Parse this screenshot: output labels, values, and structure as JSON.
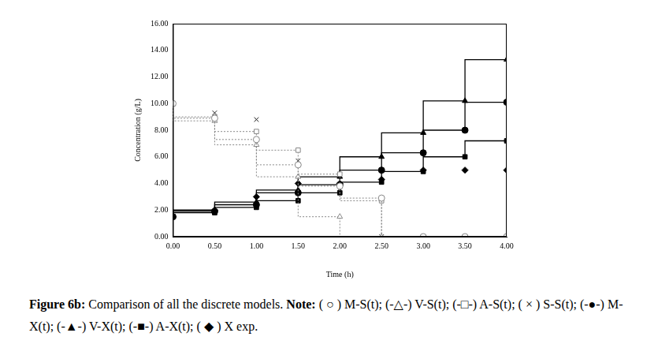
{
  "chart_data": {
    "type": "line",
    "x_label": "Time (h)",
    "y_label": "Concentration (g/L)",
    "x": [
      0,
      0.5,
      1,
      1.5,
      2,
      2.5,
      3,
      3.5,
      4
    ],
    "xlim": [
      0,
      4
    ],
    "xticks": [
      {
        "value": 0,
        "label": "0.00"
      },
      {
        "value": 0.5,
        "label": "0.50"
      },
      {
        "value": 1,
        "label": "1.00"
      },
      {
        "value": 1.5,
        "label": "1.50"
      },
      {
        "value": 2,
        "label": "2.00"
      },
      {
        "value": 2.5,
        "label": "2.50"
      },
      {
        "value": 3,
        "label": "3.00"
      },
      {
        "value": 3.5,
        "label": "3.50"
      },
      {
        "value": 4,
        "label": "4.00"
      }
    ],
    "ylim": [
      0,
      16
    ],
    "yticks": [
      {
        "value": 0,
        "label": "0.00"
      },
      {
        "value": 2,
        "label": "2.00"
      },
      {
        "value": 4,
        "label": "4.00"
      },
      {
        "value": 6,
        "label": "6.00"
      },
      {
        "value": 8,
        "label": "8.00"
      },
      {
        "value": 10,
        "label": "10.00"
      },
      {
        "value": 12,
        "label": "12.00"
      },
      {
        "value": 14,
        "label": "14.00"
      },
      {
        "value": 16,
        "label": "16.00"
      }
    ],
    "grid": false,
    "series": [
      {
        "name": "M-S(t)",
        "color": "#888888",
        "marker": "circle-open",
        "line_style": "dotted",
        "values": [
          10,
          8.9,
          7.3,
          5.4,
          3.8,
          2.9,
          0,
          0,
          0
        ]
      },
      {
        "name": "V-S(t)",
        "color": "#888888",
        "marker": "triangle-open",
        "line_style": "dotted",
        "values": [
          10,
          8.7,
          6.9,
          4.5,
          1.5,
          0,
          0,
          0,
          0
        ]
      },
      {
        "name": "A-S(t)",
        "color": "#888888",
        "marker": "square-open",
        "line_style": "dotted",
        "values": [
          10,
          9.0,
          7.9,
          6.5,
          4.7,
          2.7,
          0,
          0,
          0
        ]
      },
      {
        "name": "S-S(t)",
        "color": "#222222",
        "marker": "x",
        "line_style": "none",
        "values": [
          10,
          9.3,
          8.8,
          5.7,
          3.6,
          0,
          0,
          0,
          0
        ]
      },
      {
        "name": "M-X(t)",
        "color": "#000000",
        "marker": "circle",
        "line_style": "solid",
        "values": [
          1.5,
          1.9,
          2.4,
          3.3,
          3.9,
          5.0,
          6.3,
          8.0,
          10.1
        ]
      },
      {
        "name": "V-X(t)",
        "color": "#000000",
        "marker": "triangle",
        "line_style": "solid",
        "values": [
          1.5,
          2.0,
          2.6,
          3.5,
          4.5,
          6.0,
          7.8,
          10.2,
          13.3
        ]
      },
      {
        "name": "A-X(t)",
        "color": "#000000",
        "marker": "square",
        "line_style": "solid",
        "values": [
          1.5,
          1.8,
          2.2,
          2.7,
          3.3,
          4.1,
          4.9,
          6.0,
          7.2
        ]
      },
      {
        "name": "X exp",
        "color": "#000000",
        "marker": "diamond",
        "line_style": "none",
        "values": [
          1.5,
          2.0,
          3.0,
          4.0,
          4.0,
          4.3,
          5.0,
          5.0,
          5.0
        ]
      }
    ],
    "caption": {
      "label": "Figure 6b:",
      "text": "Comparison of all the discrete models.",
      "note_label": "Note:",
      "note": "( ○ ) M-S(t); (-△-) V-S(t); (-□-) A-S(t); ( × ) S-S(t); (-●-) M-X(t); (-▲-) V-X(t); (-■-) A-X(t); ( ◆ ) X exp."
    }
  }
}
